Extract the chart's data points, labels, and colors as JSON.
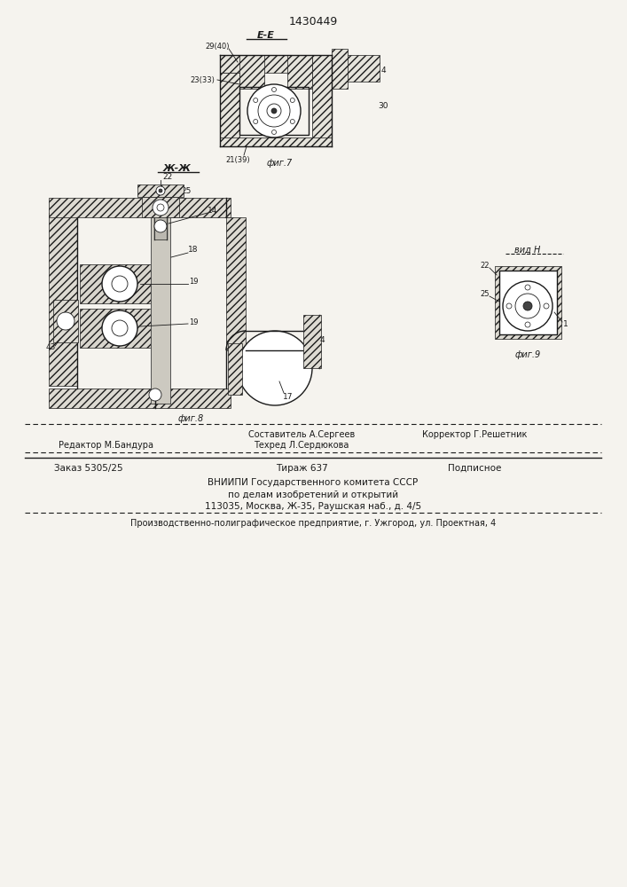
{
  "patent_number": "1430449",
  "bg_color": "#f5f3ee",
  "drawing_color": "#1a1a1a",
  "fig_labels": {
    "fig7": "фиг.7",
    "fig8": "фиг.8",
    "fig9": "фиг.9"
  },
  "section_labels": {
    "EE": "Е-Е",
    "ZhZh": "Ж-Ж",
    "vid_n": "вид Н"
  },
  "footer": {
    "line1_left": "Составитель А.Сергеев",
    "line1_right": "Корректор Г.Решетник",
    "line2_left": "Редактор М.Бандура",
    "line2_center": "Техред Л.Сердюкова",
    "order": "Заказ 5305/25",
    "tirazh": "Тираж 637",
    "podp": "Подписное",
    "vnipi_line1": "ВНИИПИ Государственного комитета СССР",
    "vnipi_line2": "по делам изобретений и открытий",
    "vnipi_line3": "113035, Москва, Ж-35, Раушская наб., д. 4/5",
    "factory": "Производственно-полиграфическое предприятие, г. Ужгород, ул. Проектная, 4"
  }
}
